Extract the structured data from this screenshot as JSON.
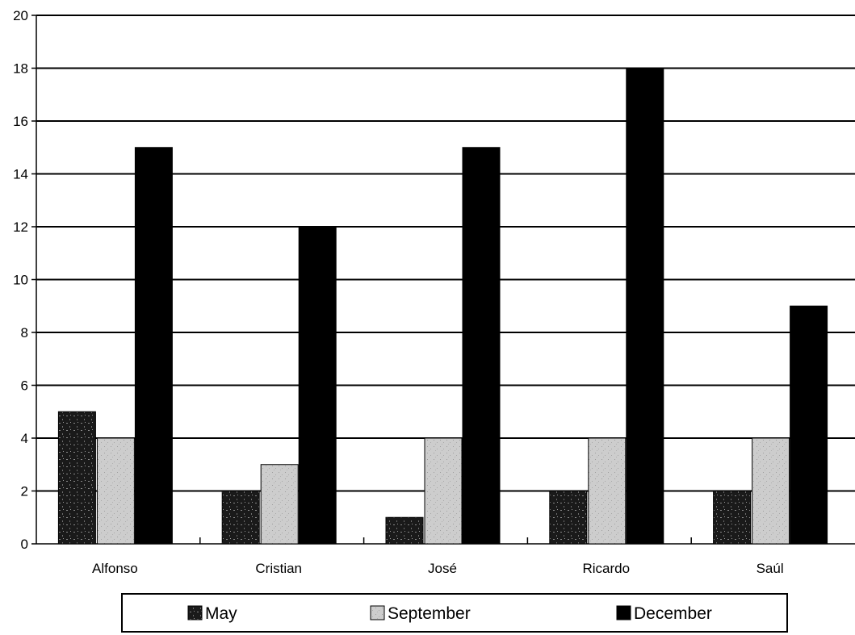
{
  "chart_data": {
    "type": "bar",
    "categories": [
      "Alfonso",
      "Cristian",
      "José",
      "Ricardo",
      "Saúl"
    ],
    "series": [
      {
        "name": "May",
        "values": [
          5,
          2,
          1,
          2,
          2
        ],
        "color": "#1a1a1a",
        "pattern": "dotted-dark"
      },
      {
        "name": "September",
        "values": [
          4,
          3,
          4,
          4,
          4
        ],
        "color": "#c8c8c8",
        "pattern": "dotted-light"
      },
      {
        "name": "December",
        "values": [
          15,
          12,
          15,
          18,
          9
        ],
        "color": "#000000",
        "pattern": "solid"
      }
    ],
    "ylim": [
      0,
      20
    ],
    "yticks": [
      "0",
      "2",
      "4",
      "6",
      "8",
      "10",
      "12",
      "14",
      "16",
      "18",
      "20"
    ],
    "grid": true,
    "legend": "bottom",
    "title": "",
    "xlabel": "",
    "ylabel": ""
  }
}
